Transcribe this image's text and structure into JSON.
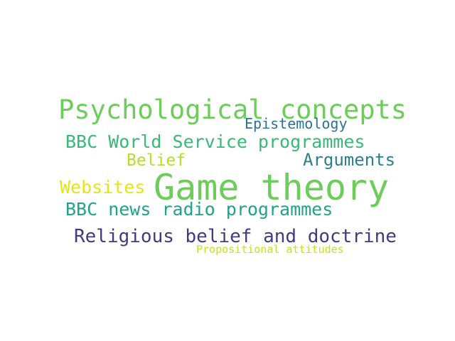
{
  "word_cloud": {
    "words": [
      {
        "text": "Psychological concepts",
        "color": "#6ccd5a"
      },
      {
        "text": "Epistemology",
        "color": "#2c728e"
      },
      {
        "text": "BBC World Service programmes",
        "color": "#38b977"
      },
      {
        "text": "Belief",
        "color": "#b5de2b"
      },
      {
        "text": "Arguments",
        "color": "#2b7f8e"
      },
      {
        "text": "Websites",
        "color": "#e5e419"
      },
      {
        "text": "Game theory",
        "color": "#6ccd5a"
      },
      {
        "text": "BBC news radio programmes",
        "color": "#20a386"
      },
      {
        "text": "Religious belief and doctrine",
        "color": "#443983"
      },
      {
        "text": "Propositional attitudes",
        "color": "#c8e020"
      }
    ]
  }
}
